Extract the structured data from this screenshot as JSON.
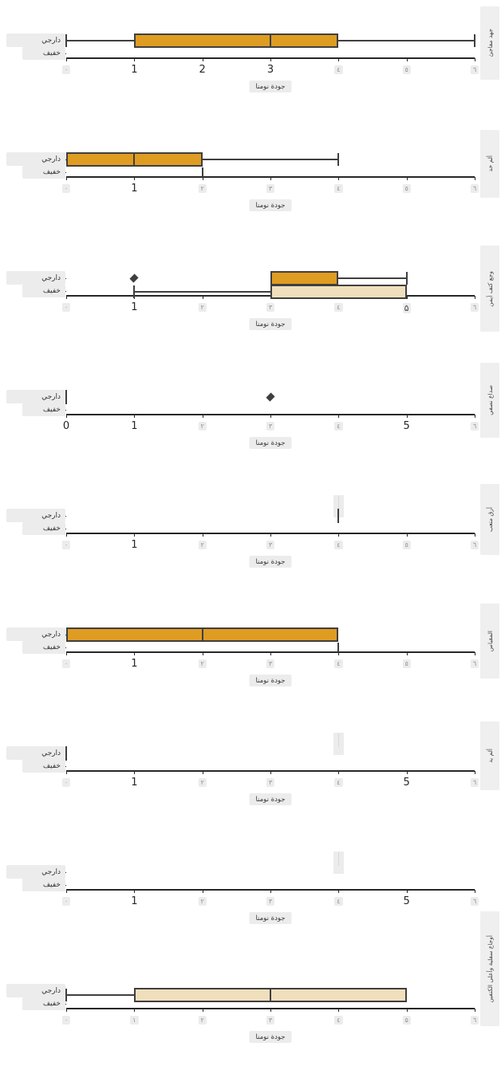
{
  "chart_data": {
    "type": "boxplot-facets",
    "orientation": "horizontal",
    "xlabel": "جودة نومنا",
    "xlim": [
      0,
      6
    ],
    "category_labels": {
      "top": "دارجي",
      "bottom": "خفيف"
    },
    "colors": {
      "box_orange": "#df9c22",
      "box_beige": "#f0dfbd",
      "box_edge": "#3f3f3f",
      "axis": "#262626",
      "label_bbox": "#ececec",
      "strip_bg": "#efefef",
      "faint_tick_text": "#8f8f8f"
    },
    "facets": [
      {
        "label": "جهد مفاجئ",
        "xticks": [
          {
            "t": "٠",
            "s": "f"
          },
          {
            "t": "1",
            "s": "c"
          },
          {
            "t": "2",
            "s": "c"
          },
          {
            "t": "3",
            "s": "c"
          },
          {
            "t": "٤",
            "s": "f"
          },
          {
            "t": "٥",
            "s": "f"
          },
          {
            "t": "٦",
            "s": "f"
          }
        ],
        "marks": [
          {
            "type": "box",
            "row": "top",
            "color": "orange",
            "q1": 1,
            "q3": 4,
            "median": 3,
            "wlo": 0,
            "whi": 6
          }
        ]
      },
      {
        "label": "ألم خد",
        "xticks": [
          {
            "t": "٠",
            "s": "f"
          },
          {
            "t": "1",
            "s": "c"
          },
          {
            "t": "٢",
            "s": "f"
          },
          {
            "t": "٣",
            "s": "f"
          },
          {
            "t": "٤",
            "s": "f"
          },
          {
            "t": "٥",
            "s": "f"
          },
          {
            "t": "٦",
            "s": "f"
          }
        ],
        "marks": [
          {
            "type": "box",
            "row": "top",
            "color": "orange",
            "q1": 0,
            "q3": 2,
            "median": 1,
            "whi": 4
          },
          {
            "type": "vline",
            "row": "bottom",
            "x": 2
          }
        ]
      },
      {
        "label": "وجع كتف أيمن",
        "xticks": [
          {
            "t": "٠",
            "s": "f"
          },
          {
            "t": "1",
            "s": "c"
          },
          {
            "t": "٢",
            "s": "f"
          },
          {
            "t": "٣",
            "s": "f"
          },
          {
            "t": "٤",
            "s": "f"
          },
          {
            "t": "۵",
            "s": "m"
          },
          {
            "t": "٦",
            "s": "f"
          }
        ],
        "marks": [
          {
            "type": "box",
            "row": "top",
            "color": "orange",
            "q1": 3,
            "q3": 4,
            "whi": 5,
            "outliers": [
              1
            ]
          },
          {
            "type": "box",
            "row": "bottom",
            "color": "beige",
            "q1": 3,
            "q3": 5,
            "wlo": 1
          }
        ]
      },
      {
        "label": "صداع نصفي",
        "xticks": [
          {
            "t": "0",
            "s": "c"
          },
          {
            "t": "1",
            "s": "c"
          },
          {
            "t": "٢",
            "s": "f"
          },
          {
            "t": "٣",
            "s": "f"
          },
          {
            "t": "٤",
            "s": "f"
          },
          {
            "t": "5",
            "s": "c"
          },
          {
            "t": "٦",
            "s": "f"
          }
        ],
        "marks": [
          {
            "type": "vline",
            "row": "top",
            "x": 0
          },
          {
            "type": "outlier",
            "row": "top",
            "x": 3
          }
        ]
      },
      {
        "label": "أرق متعب",
        "xticks": [
          {
            "t": "٠",
            "s": "f"
          },
          {
            "t": "1",
            "s": "c"
          },
          {
            "t": "٢",
            "s": "f"
          },
          {
            "t": "٣",
            "s": "f"
          },
          {
            "t": "٤",
            "s": "f"
          },
          {
            "t": "٥",
            "s": "f"
          },
          {
            "t": "٦",
            "s": "f"
          }
        ],
        "marks": [
          {
            "type": "smudge",
            "row": "top",
            "x": 4
          },
          {
            "type": "vline",
            "row": "top",
            "x": 4
          }
        ]
      },
      {
        "label": "المقياس",
        "xticks": [
          {
            "t": "٠",
            "s": "f"
          },
          {
            "t": "1",
            "s": "c"
          },
          {
            "t": "٢",
            "s": "f"
          },
          {
            "t": "٣",
            "s": "f"
          },
          {
            "t": "٤",
            "s": "f"
          },
          {
            "t": "٥",
            "s": "f"
          },
          {
            "t": "٦",
            "s": "f"
          }
        ],
        "marks": [
          {
            "type": "box",
            "row": "top",
            "color": "orange",
            "q1": 0,
            "q3": 4,
            "median": 2
          },
          {
            "type": "vline",
            "row": "bottom",
            "x": 4
          }
        ]
      },
      {
        "label": "ألم يد",
        "xticks": [
          {
            "t": "٠",
            "s": "f"
          },
          {
            "t": "1",
            "s": "c"
          },
          {
            "t": "٢",
            "s": "f"
          },
          {
            "t": "٣",
            "s": "f"
          },
          {
            "t": "٤",
            "s": "f"
          },
          {
            "t": "5",
            "s": "c"
          },
          {
            "t": "٦",
            "s": "f"
          }
        ],
        "marks": [
          {
            "type": "vline",
            "row": "top",
            "x": 0
          },
          {
            "type": "smudge",
            "row": "top",
            "x": 4
          }
        ]
      },
      {
        "label": "",
        "xticks": [
          {
            "t": "٠",
            "s": "f"
          },
          {
            "t": "1",
            "s": "c"
          },
          {
            "t": "٢",
            "s": "f"
          },
          {
            "t": "٣",
            "s": "f"
          },
          {
            "t": "٤",
            "s": "f"
          },
          {
            "t": "5",
            "s": "c"
          },
          {
            "t": "٦",
            "s": "f"
          }
        ],
        "marks": [
          {
            "type": "smudge",
            "row": "top",
            "x": 4
          }
        ]
      },
      {
        "label": "أوجاع سفلية وأعلى الكتفين",
        "xticks": [
          {
            "t": "٠",
            "s": "f"
          },
          {
            "t": "١",
            "s": "f"
          },
          {
            "t": "٢",
            "s": "f"
          },
          {
            "t": "٣",
            "s": "f"
          },
          {
            "t": "٤",
            "s": "f"
          },
          {
            "t": "۵",
            "s": "f"
          },
          {
            "t": "٦",
            "s": "f"
          }
        ],
        "marks": [
          {
            "type": "box",
            "row": "bottom",
            "dy": -12,
            "color": "beige",
            "q1": 1,
            "q3": 5,
            "median": 3,
            "wlo": 0
          }
        ]
      }
    ]
  }
}
